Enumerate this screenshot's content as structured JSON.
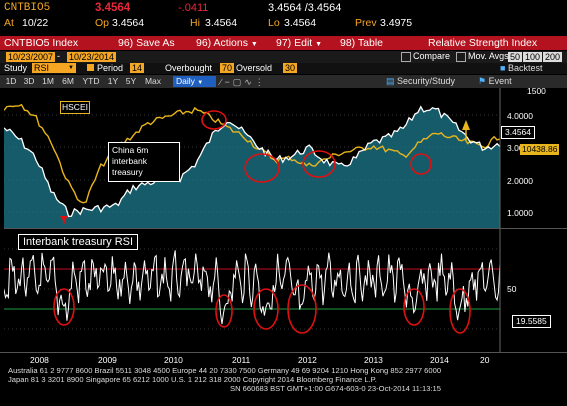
{
  "header": {
    "ticker": "CNTBIO5",
    "last": "3.4564",
    "change": "-.0411",
    "bid_ask": "3.4564 /3.4564",
    "at_label": "At",
    "at_date": "10/22",
    "op_label": "Op",
    "op_value": "3.4564",
    "hi_label": "Hi",
    "hi_value": "3.4564",
    "lo_label": "Lo",
    "lo_value": "3.4564",
    "prev_label": "Prev",
    "prev_value": "3.4975"
  },
  "toolbar": {
    "index_label": "CNTBIO5 Index",
    "save_num": "96)",
    "save_label": "Save As",
    "actions_num": "96)",
    "actions_label": "Actions",
    "edit_num": "97)",
    "edit_label": "Edit",
    "table_num": "98)",
    "table_label": "Table",
    "rsi_title": "Relative Strength Index"
  },
  "daterow": {
    "start": "10/23/2007",
    "dash": "-",
    "end": "10/23/2014",
    "compare_label": "Compare",
    "mov_label": "Mov. Avgs",
    "ma1": "50",
    "ma2": "100",
    "ma3": "200"
  },
  "studyrow": {
    "study_label": "Study",
    "study_value": "RSI",
    "period_label": "Period",
    "period_value": "14",
    "overbought_label": "Overbought",
    "overbought_value": "70",
    "oversold_label": "Oversold",
    "oversold_value": "30",
    "backtest_label": "Backtest"
  },
  "ranges": {
    "buttons": [
      "1D",
      "3D",
      "1M",
      "6M",
      "YTD",
      "1Y",
      "5Y",
      "Max"
    ],
    "daily_label": "Daily",
    "security_label": "Security/Study",
    "event_label": "Event"
  },
  "chart": {
    "top_axis": [
      "1500",
      "4.0000",
      "3.0000",
      "2.0000",
      "1.0000"
    ],
    "last_value_label": "3.4564",
    "hscei_value_label": "10438.86",
    "hscei_label": "HSCEI",
    "china_label_l1": "China 6m",
    "china_label_l2": "interbank",
    "china_label_l3": "treasury",
    "rsi_title": "Interbank treasury RSI",
    "rsi_axis": [
      "50"
    ],
    "rsi_value_label": "19.5585",
    "x_axis": [
      "2008",
      "2009",
      "2010",
      "2011",
      "2012",
      "2013",
      "2014",
      "20"
    ]
  },
  "footer": {
    "line1": "Australia 61 2 9777 8600 Brazil 5511 3048 4500 Europe 44 20 7330 7500 Germany 49 69 9204 1210 Hong Kong 852 2977 6000",
    "line2": "Japan 81 3 3201 8900          Singapore 65 6212 1000          U.S. 1 212 318 2000          Copyright 2014 Bloomberg Finance L.P.",
    "line3": "SN 660683 BST   GMT+1:00 G674-603-0 23-Oct-2014 11:13:15"
  },
  "colors": {
    "amber": "#f5a623",
    "bloomberg_red": "#b3121e",
    "hscei_line": "#e8b51c",
    "treasury_line": "#ffffff",
    "area_fill": "#1c7a8c",
    "highlight_circle": "#e01010",
    "rsi_overbought": "#c0101a",
    "rsi_oversold": "#20a040"
  }
}
